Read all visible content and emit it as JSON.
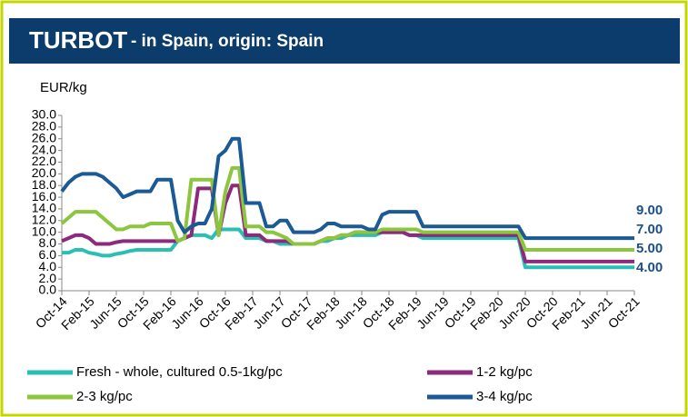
{
  "chart_data": {
    "type": "line",
    "title": "TURBOT",
    "subtitle": "- in Spain, origin: Spain",
    "y_label": "EUR/kg",
    "categories": [
      "Oct-14",
      null,
      null,
      null,
      "Feb-15",
      null,
      null,
      null,
      "Jun-15",
      null,
      null,
      null,
      "Oct-15",
      null,
      null,
      null,
      "Feb-16",
      null,
      null,
      null,
      "Jun-16",
      null,
      null,
      null,
      "Oct-16",
      null,
      null,
      null,
      "Feb-17",
      null,
      null,
      null,
      "Jun-17",
      null,
      null,
      null,
      "Oct-17",
      null,
      null,
      null,
      "Feb-18",
      null,
      null,
      null,
      "Jun-18",
      null,
      null,
      null,
      "Oct-18",
      null,
      null,
      null,
      "Feb-19",
      null,
      null,
      null,
      "Jun-19",
      null,
      null,
      null,
      "Oct-19",
      null,
      null,
      null,
      "Feb-20",
      null,
      null,
      null,
      "Jun-20",
      null,
      null,
      null,
      "Oct-20",
      null,
      null,
      null,
      "Feb-21",
      null,
      null,
      null,
      "Jun-21",
      null,
      null,
      null,
      "Oct-21"
    ],
    "series": [
      {
        "name": "Fresh - whole, cultured 0.5-1kg/pc",
        "color": "#2bbfb3",
        "values": [
          6.5,
          6.5,
          7,
          7,
          6.5,
          6.3,
          6,
          6,
          6.3,
          6.5,
          6.8,
          7,
          7,
          7,
          7,
          7,
          7,
          8.5,
          9,
          9.5,
          9.5,
          9.5,
          9,
          10.5,
          10.5,
          10.5,
          10.5,
          9,
          9,
          9,
          8.5,
          8.5,
          8,
          8,
          8,
          8,
          8,
          8,
          8.5,
          8.5,
          9,
          9,
          9.5,
          9.5,
          9.5,
          9.5,
          9.5,
          10,
          10,
          10,
          10,
          9.5,
          9.5,
          9,
          9,
          9,
          9,
          9,
          9,
          9,
          9,
          9,
          9,
          9,
          9,
          9,
          9,
          9,
          4,
          4,
          4,
          4,
          4,
          4,
          4,
          4,
          4,
          4,
          4,
          4,
          4,
          4,
          4,
          4,
          4
        ]
      },
      {
        "name": "1-2 kg/pc",
        "color": "#8c2a7c",
        "values": [
          8.5,
          9,
          9.5,
          9.5,
          9,
          8,
          8,
          8,
          8.3,
          8.5,
          8.5,
          8.5,
          8.5,
          8.5,
          8.5,
          8.5,
          8.5,
          8.5,
          9,
          9.5,
          17.5,
          17.5,
          17.5,
          9.5,
          15,
          18,
          18,
          9.5,
          9.5,
          9.5,
          8.5,
          8.5,
          8.5,
          8.5,
          8,
          8,
          8,
          8,
          8.5,
          9,
          9,
          9.5,
          9.5,
          10,
          10,
          10,
          10,
          10,
          10,
          10,
          10,
          9.5,
          9.5,
          9.5,
          9.5,
          9.5,
          9.5,
          9.5,
          9.5,
          9.5,
          9.5,
          9.5,
          9.5,
          9.5,
          9.5,
          9.5,
          9.5,
          9.5,
          5,
          5,
          5,
          5,
          5,
          5,
          5,
          5,
          5,
          5,
          5,
          5,
          5,
          5,
          5,
          5,
          5
        ]
      },
      {
        "name": "2-3 kg/pc",
        "color": "#8cc63e",
        "values": [
          11.5,
          12.5,
          13.5,
          13.5,
          13.5,
          13.5,
          12.5,
          11.5,
          10.5,
          10.5,
          11,
          11,
          11,
          11.5,
          11.5,
          11.5,
          11.5,
          8.5,
          9,
          19,
          19,
          19,
          19,
          9.5,
          17,
          21,
          21,
          11,
          11,
          11,
          10,
          10,
          9.5,
          9,
          8,
          8,
          8,
          8,
          8.5,
          9,
          9,
          9.5,
          9.5,
          10,
          10,
          10,
          10,
          10.5,
          10.5,
          10.5,
          10.5,
          10.5,
          10.5,
          10,
          10,
          10,
          10,
          10,
          10,
          10,
          10,
          10,
          10,
          10,
          10,
          10,
          10,
          10,
          7,
          7,
          7,
          7,
          7,
          7,
          7,
          7,
          7,
          7,
          7,
          7,
          7,
          7,
          7,
          7,
          7
        ]
      },
      {
        "name": "3-4 kg/pc",
        "color": "#1b5a94",
        "values": [
          17,
          18.5,
          19.5,
          20,
          20,
          20,
          19.5,
          18.5,
          17.5,
          16,
          16.5,
          17,
          17,
          17,
          19,
          19,
          19,
          12,
          10,
          11,
          11.5,
          11.5,
          14,
          23,
          24,
          26,
          26,
          15,
          15,
          15,
          11,
          11,
          12,
          12,
          10,
          10,
          10,
          10,
          10.5,
          11.5,
          11.5,
          11,
          11,
          11,
          11,
          10.5,
          10.5,
          13,
          13.5,
          13.5,
          13.5,
          13.5,
          13.5,
          11,
          11,
          11,
          11,
          11,
          11,
          11,
          11,
          11,
          11,
          11,
          11,
          11,
          11,
          11,
          9,
          9,
          9,
          9,
          9,
          9,
          9,
          9,
          9,
          9,
          9,
          9,
          9,
          9,
          9,
          9,
          9
        ]
      }
    ],
    "ylim": [
      0,
      30
    ],
    "yticks": [
      {
        "value": 0,
        "label": "0.0"
      },
      {
        "value": 2,
        "label": "2.0"
      },
      {
        "value": 4,
        "label": "4.0"
      },
      {
        "value": 6,
        "label": "6.0"
      },
      {
        "value": 8,
        "label": "8.0"
      },
      {
        "value": 10,
        "label": "10.0"
      },
      {
        "value": 12,
        "label": "12.0"
      },
      {
        "value": 14,
        "label": "14.0"
      },
      {
        "value": 16,
        "label": "16.0"
      },
      {
        "value": 18,
        "label": "18.0"
      },
      {
        "value": 20,
        "label": "20.0"
      },
      {
        "value": 22,
        "label": "22.0"
      },
      {
        "value": 24,
        "label": "24.0"
      },
      {
        "value": 26,
        "label": "26.0"
      },
      {
        "value": 28,
        "label": "28.0"
      },
      {
        "value": 30,
        "label": "30.0"
      }
    ],
    "annotations": [
      "9.00",
      "7.00",
      "5.00",
      "4.00"
    ],
    "grid": false
  }
}
